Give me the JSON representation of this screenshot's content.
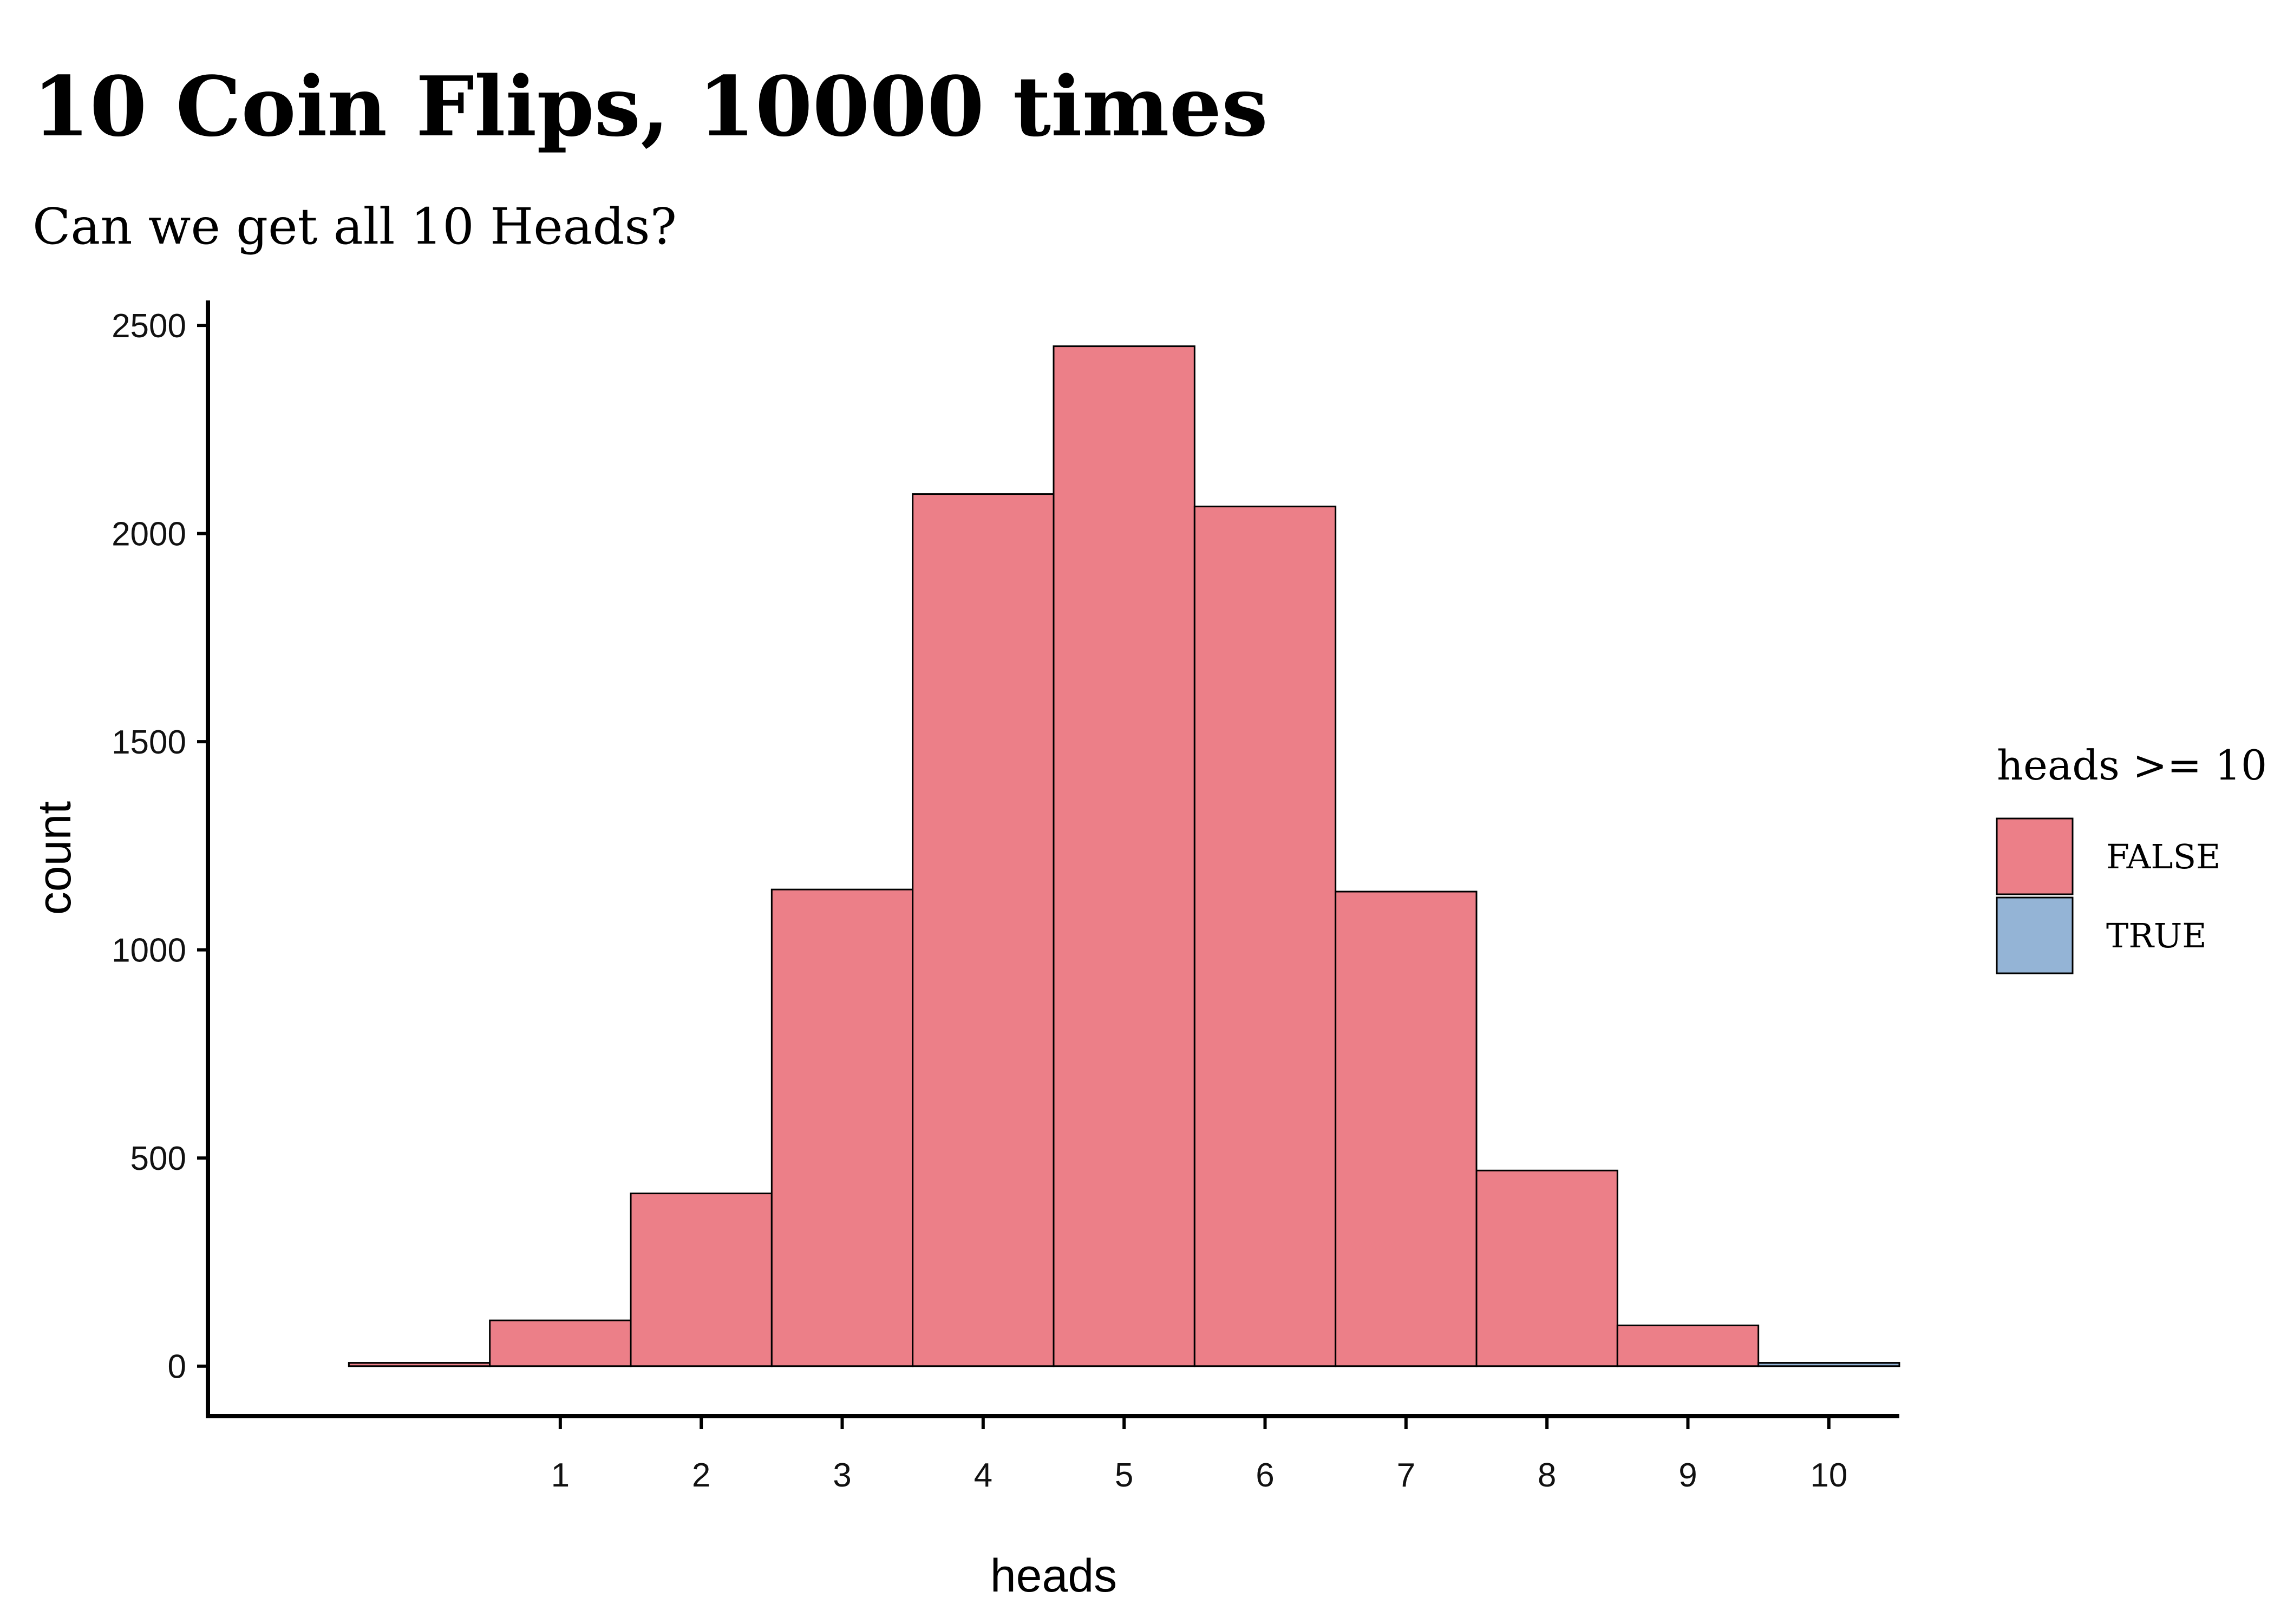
{
  "chart_data": {
    "type": "bar",
    "title": "10 Coin Flips, 10000 times",
    "subtitle": "Can we get all 10 Heads?",
    "xlabel": "heads",
    "ylabel": "count",
    "x_ticks": [
      "1",
      "2",
      "3",
      "4",
      "5",
      "6",
      "7",
      "8",
      "9",
      "10"
    ],
    "y_ticks": [
      "0",
      "500",
      "1000",
      "1500",
      "2000",
      "2500"
    ],
    "xlim": [
      -1.5,
      10.5
    ],
    "ylim": [
      -120,
      2560
    ],
    "bars": [
      {
        "x": 0,
        "value": 8,
        "group": "FALSE"
      },
      {
        "x": 1,
        "value": 110,
        "group": "FALSE"
      },
      {
        "x": 2,
        "value": 415,
        "group": "FALSE"
      },
      {
        "x": 3,
        "value": 1145,
        "group": "FALSE"
      },
      {
        "x": 4,
        "value": 2095,
        "group": "FALSE"
      },
      {
        "x": 5,
        "value": 2450,
        "group": "FALSE"
      },
      {
        "x": 6,
        "value": 2065,
        "group": "FALSE"
      },
      {
        "x": 7,
        "value": 1140,
        "group": "FALSE"
      },
      {
        "x": 8,
        "value": 470,
        "group": "FALSE"
      },
      {
        "x": 9,
        "value": 98,
        "group": "FALSE"
      },
      {
        "x": 10,
        "value": 8,
        "group": "TRUE"
      }
    ],
    "legend": {
      "title": "heads >= 10",
      "placement": "right",
      "items": [
        {
          "label": "FALSE",
          "color": "#ec7f88"
        },
        {
          "label": "TRUE",
          "color": "#94b4d6"
        }
      ]
    },
    "grid": false
  }
}
